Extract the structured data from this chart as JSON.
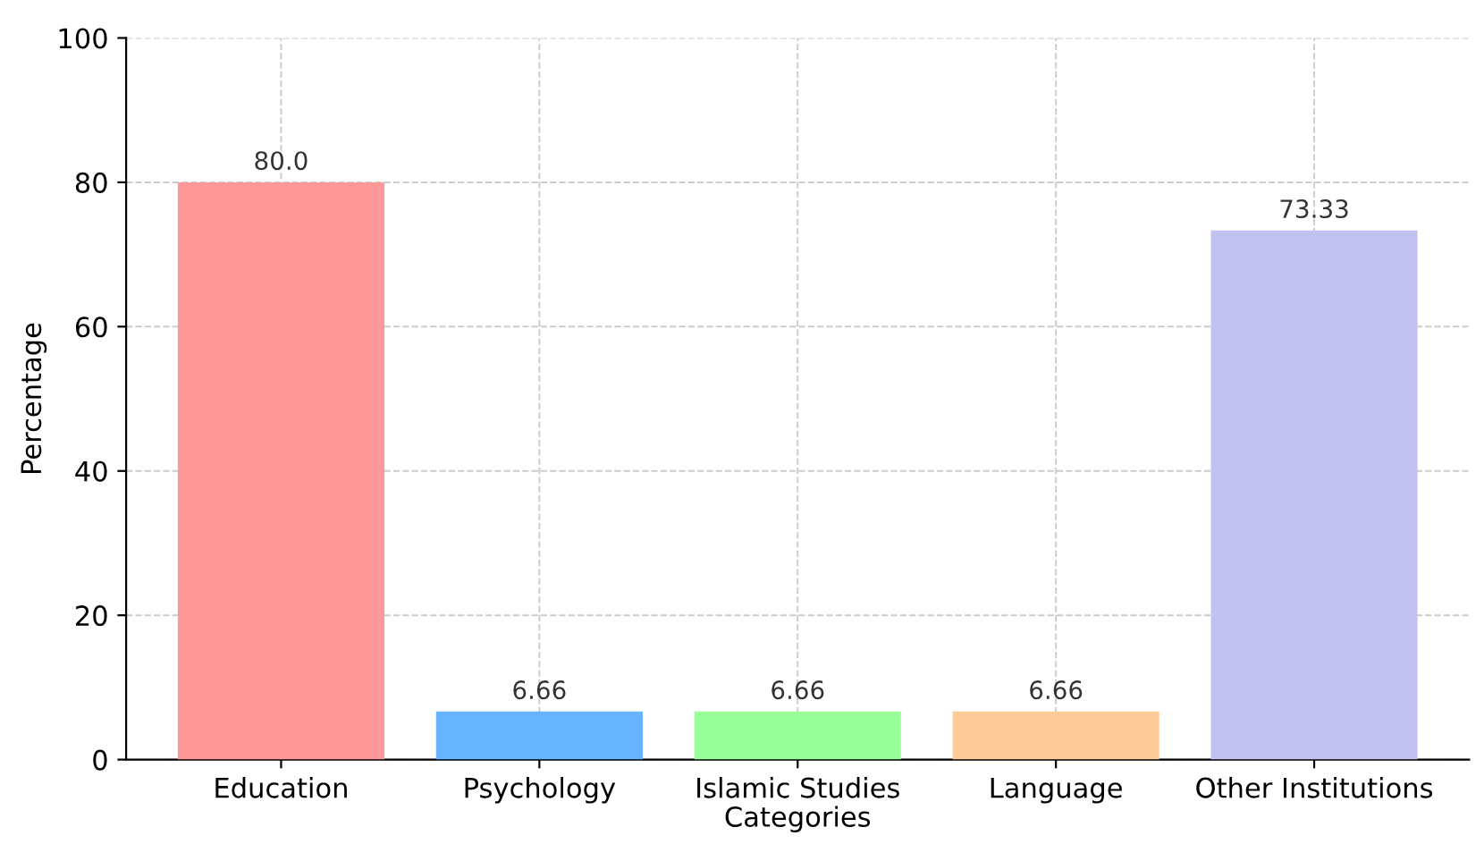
{
  "chart_data": {
    "type": "bar",
    "xlabel": "Categories",
    "ylabel": "Percentage",
    "categories": [
      "Education",
      "Psychology",
      "Islamic Studies",
      "Language",
      "Other Institutions"
    ],
    "values": [
      80.0,
      6.66,
      6.66,
      6.66,
      73.33
    ],
    "colors": [
      "#ff9999",
      "#66b3ff",
      "#99ff99",
      "#ffcc99",
      "#c2c2f0"
    ],
    "value_labels": [
      "80.0",
      "6.66",
      "6.66",
      "6.66",
      "73.33"
    ],
    "ylim": [
      0,
      100
    ],
    "yticks": [
      0,
      20,
      40,
      60,
      80,
      100
    ],
    "grid": true
  }
}
